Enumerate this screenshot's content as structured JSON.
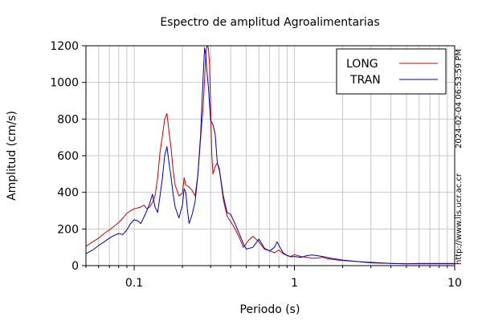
{
  "timestamp": "2024-02-04 06:53:59 PM",
  "source_url": "http://www.lis.ucr.ac.cr",
  "chart_data": {
    "type": "line",
    "title": "Espectro de amplitud Agroalimentarias",
    "xlabel": "Periodo (s)",
    "ylabel": "Amplitud (cm/s)",
    "xscale": "log",
    "xlim": [
      0.05,
      10
    ],
    "ylim": [
      0,
      1200
    ],
    "x_ticks": [
      0.1,
      1,
      10
    ],
    "x_tick_labels": [
      "0.1",
      "1",
      "10"
    ],
    "y_ticks": [
      0,
      200,
      400,
      600,
      800,
      1000,
      1200
    ],
    "y_tick_labels": [
      "0",
      "200",
      "400",
      "600",
      "800",
      "1000",
      "1200"
    ],
    "grid": true,
    "legend_position": "top-right",
    "series": [
      {
        "name": "LONG",
        "color": "#cc0000",
        "points": [
          [
            0.05,
            105
          ],
          [
            0.055,
            130
          ],
          [
            0.06,
            150
          ],
          [
            0.065,
            175
          ],
          [
            0.07,
            195
          ],
          [
            0.075,
            215
          ],
          [
            0.08,
            235
          ],
          [
            0.085,
            260
          ],
          [
            0.09,
            285
          ],
          [
            0.095,
            300
          ],
          [
            0.1,
            310
          ],
          [
            0.105,
            315
          ],
          [
            0.11,
            320
          ],
          [
            0.115,
            330
          ],
          [
            0.12,
            310
          ],
          [
            0.125,
            320
          ],
          [
            0.13,
            345
          ],
          [
            0.135,
            380
          ],
          [
            0.14,
            480
          ],
          [
            0.145,
            620
          ],
          [
            0.15,
            710
          ],
          [
            0.155,
            800
          ],
          [
            0.16,
            830
          ],
          [
            0.165,
            730
          ],
          [
            0.17,
            640
          ],
          [
            0.175,
            520
          ],
          [
            0.18,
            440
          ],
          [
            0.19,
            380
          ],
          [
            0.2,
            395
          ],
          [
            0.205,
            480
          ],
          [
            0.21,
            440
          ],
          [
            0.22,
            430
          ],
          [
            0.23,
            410
          ],
          [
            0.24,
            380
          ],
          [
            0.25,
            500
          ],
          [
            0.26,
            700
          ],
          [
            0.27,
            880
          ],
          [
            0.275,
            1020
          ],
          [
            0.28,
            1150
          ],
          [
            0.285,
            1200
          ],
          [
            0.29,
            1190
          ],
          [
            0.295,
            1100
          ],
          [
            0.3,
            850
          ],
          [
            0.305,
            600
          ],
          [
            0.31,
            500
          ],
          [
            0.32,
            540
          ],
          [
            0.33,
            560
          ],
          [
            0.34,
            530
          ],
          [
            0.35,
            440
          ],
          [
            0.36,
            360
          ],
          [
            0.38,
            270
          ],
          [
            0.4,
            240
          ],
          [
            0.42,
            210
          ],
          [
            0.45,
            160
          ],
          [
            0.48,
            100
          ],
          [
            0.52,
            140
          ],
          [
            0.55,
            160
          ],
          [
            0.6,
            130
          ],
          [
            0.65,
            90
          ],
          [
            0.7,
            80
          ],
          [
            0.75,
            70
          ],
          [
            0.8,
            85
          ],
          [
            0.85,
            65
          ],
          [
            0.9,
            55
          ],
          [
            0.95,
            50
          ],
          [
            1.0,
            60
          ],
          [
            1.1,
            50
          ],
          [
            1.2,
            45
          ],
          [
            1.3,
            40
          ],
          [
            1.4,
            42
          ],
          [
            1.5,
            45
          ],
          [
            1.6,
            38
          ],
          [
            1.8,
            32
          ],
          [
            2.0,
            28
          ],
          [
            2.5,
            22
          ],
          [
            3.0,
            15
          ],
          [
            4.0,
            12
          ],
          [
            5.0,
            10
          ],
          [
            6.0,
            12
          ],
          [
            8.0,
            12
          ],
          [
            10.0,
            12
          ]
        ]
      },
      {
        "name": "TRAN",
        "color": "#0000bb",
        "points": [
          [
            0.05,
            65
          ],
          [
            0.055,
            85
          ],
          [
            0.06,
            110
          ],
          [
            0.065,
            130
          ],
          [
            0.07,
            150
          ],
          [
            0.075,
            165
          ],
          [
            0.08,
            175
          ],
          [
            0.085,
            170
          ],
          [
            0.09,
            195
          ],
          [
            0.095,
            230
          ],
          [
            0.1,
            250
          ],
          [
            0.105,
            245
          ],
          [
            0.11,
            230
          ],
          [
            0.115,
            265
          ],
          [
            0.12,
            300
          ],
          [
            0.125,
            340
          ],
          [
            0.13,
            390
          ],
          [
            0.135,
            320
          ],
          [
            0.14,
            290
          ],
          [
            0.145,
            380
          ],
          [
            0.15,
            480
          ],
          [
            0.155,
            600
          ],
          [
            0.16,
            650
          ],
          [
            0.165,
            560
          ],
          [
            0.17,
            480
          ],
          [
            0.175,
            390
          ],
          [
            0.18,
            320
          ],
          [
            0.19,
            260
          ],
          [
            0.2,
            330
          ],
          [
            0.205,
            420
          ],
          [
            0.21,
            400
          ],
          [
            0.215,
            300
          ],
          [
            0.22,
            230
          ],
          [
            0.23,
            280
          ],
          [
            0.24,
            350
          ],
          [
            0.25,
            500
          ],
          [
            0.26,
            720
          ],
          [
            0.265,
            900
          ],
          [
            0.27,
            1050
          ],
          [
            0.275,
            1190
          ],
          [
            0.28,
            1150
          ],
          [
            0.285,
            1050
          ],
          [
            0.29,
            980
          ],
          [
            0.3,
            790
          ],
          [
            0.31,
            770
          ],
          [
            0.32,
            720
          ],
          [
            0.33,
            560
          ],
          [
            0.34,
            520
          ],
          [
            0.35,
            450
          ],
          [
            0.36,
            380
          ],
          [
            0.38,
            290
          ],
          [
            0.4,
            280
          ],
          [
            0.42,
            240
          ],
          [
            0.45,
            180
          ],
          [
            0.48,
            120
          ],
          [
            0.5,
            90
          ],
          [
            0.55,
            100
          ],
          [
            0.6,
            145
          ],
          [
            0.65,
            95
          ],
          [
            0.7,
            80
          ],
          [
            0.75,
            100
          ],
          [
            0.78,
            130
          ],
          [
            0.8,
            110
          ],
          [
            0.85,
            70
          ],
          [
            0.9,
            55
          ],
          [
            0.95,
            48
          ],
          [
            1.0,
            50
          ],
          [
            1.1,
            45
          ],
          [
            1.2,
            55
          ],
          [
            1.3,
            58
          ],
          [
            1.5,
            50
          ],
          [
            1.7,
            40
          ],
          [
            2.0,
            30
          ],
          [
            2.5,
            22
          ],
          [
            3.0,
            18
          ],
          [
            4.0,
            12
          ],
          [
            5.0,
            10
          ],
          [
            6.0,
            10
          ],
          [
            8.0,
            10
          ],
          [
            10.0,
            10
          ]
        ]
      }
    ]
  }
}
